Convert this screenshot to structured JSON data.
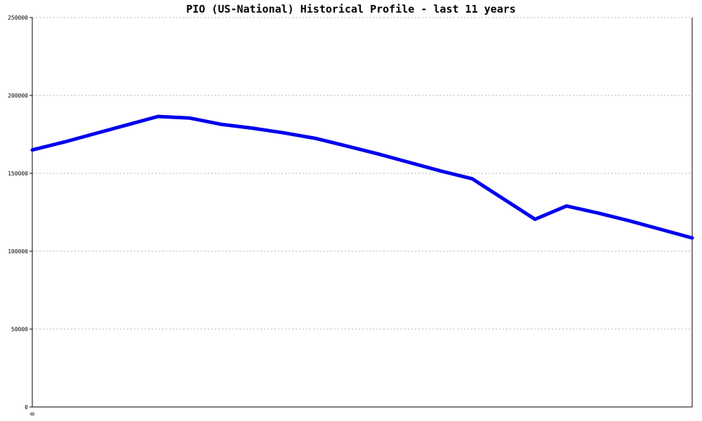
{
  "chart_data": {
    "type": "line",
    "title": "PIO (US-National) Historical Profile - last 11 years",
    "xlabel": "",
    "ylabel": "",
    "x_tick_labels": [
      "0"
    ],
    "ylim": [
      0,
      250000
    ],
    "yticks": [
      0,
      50000,
      100000,
      150000,
      200000,
      250000
    ],
    "grid": true,
    "series": [
      {
        "color": "#0000ee",
        "values": [
          165000,
          170000,
          175500,
          181000,
          186500,
          185500,
          181500,
          179000,
          176000,
          172500,
          167500,
          162500,
          157000,
          151500,
          146500,
          133500,
          120500,
          129000,
          124500,
          119500,
          114000,
          108500
        ]
      }
    ]
  }
}
